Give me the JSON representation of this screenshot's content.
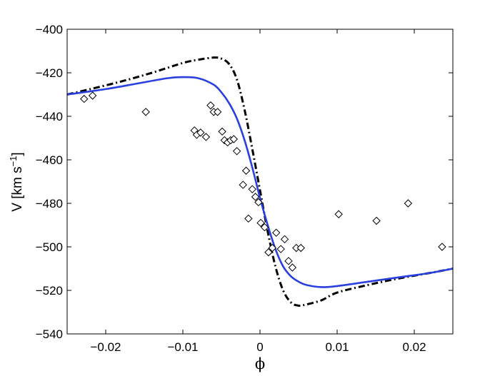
{
  "chart_data": {
    "type": "scatter",
    "title": "",
    "xlabel": "ϕ",
    "ylabel": {
      "main": "V [km s",
      "superscript": "−1",
      "close": "]"
    },
    "xlim": [
      -0.025,
      0.025
    ],
    "ylim": [
      -540,
      -400
    ],
    "x_ticks": [
      -0.02,
      -0.01,
      0,
      0.01,
      0.02
    ],
    "x_tick_labels": [
      "−0.02",
      "−0.01",
      "0",
      "0.01",
      "0.02"
    ],
    "y_ticks": [
      -540,
      -520,
      -500,
      -480,
      -460,
      -440,
      -420,
      -400
    ],
    "y_tick_labels": [
      "−540",
      "−520",
      "−500",
      "−480",
      "−460",
      "−440",
      "−420",
      "−400"
    ],
    "grid": false,
    "legend": "none",
    "series": [
      {
        "kind": "line",
        "style": "dash-dot",
        "color": "#000000",
        "x": [
          -0.025,
          -0.022,
          -0.018,
          -0.014,
          -0.01,
          -0.008,
          -0.006,
          -0.005,
          -0.004,
          -0.003,
          -0.002,
          -0.001,
          0,
          0.001,
          0.002,
          0.003,
          0.004,
          0.005,
          0.006,
          0.008,
          0.01,
          0.014,
          0.018,
          0.022,
          0.025
        ],
        "y": [
          -430,
          -427.5,
          -424,
          -420,
          -415.5,
          -414,
          -413,
          -413.5,
          -416,
          -423,
          -437,
          -455,
          -474,
          -493,
          -509,
          -520,
          -525.5,
          -527,
          -526.5,
          -524.5,
          -521,
          -517.5,
          -514.5,
          -512,
          -510
        ]
      },
      {
        "kind": "line",
        "style": "solid",
        "color": "#2a3fe0",
        "x": [
          -0.025,
          -0.02,
          -0.016,
          -0.012,
          -0.01,
          -0.008,
          -0.006,
          -0.005,
          -0.004,
          -0.003,
          -0.002,
          -0.001,
          0,
          0.001,
          0.002,
          0.003,
          0.004,
          0.005,
          0.006,
          0.008,
          0.01,
          0.014,
          0.018,
          0.022,
          0.025
        ],
        "y": [
          -430,
          -427.5,
          -425,
          -422.5,
          -422,
          -422.5,
          -425.5,
          -429,
          -434,
          -441,
          -451,
          -463.5,
          -477.5,
          -490,
          -501,
          -509,
          -513.5,
          -516,
          -517.5,
          -518.5,
          -518,
          -516,
          -514,
          -512,
          -510
        ]
      },
      {
        "kind": "markers",
        "marker": "diamond",
        "color": "#000000",
        "x": [
          -0.0228,
          -0.0217,
          -0.0148,
          -0.0085,
          -0.0082,
          -0.0077,
          -0.007,
          -0.0064,
          -0.006,
          -0.0055,
          -0.0049,
          -0.0046,
          -0.0042,
          -0.0038,
          -0.0034,
          -0.003,
          -0.0022,
          -0.0018,
          -0.0015,
          -0.001,
          -0.0006,
          -0.0002,
          0.0001,
          0.0006,
          0.0011,
          0.0016,
          0.0021,
          0.0027,
          0.0032,
          0.0037,
          0.0042,
          0.0047,
          0.0053,
          0.0102,
          0.0151,
          0.0192,
          0.0236
        ],
        "y": [
          -432,
          -430.5,
          -438,
          -446.5,
          -448.5,
          -447.5,
          -449.5,
          -435,
          -438,
          -438,
          -447,
          -451,
          -452,
          -451,
          -450.5,
          -456,
          -471.5,
          -465,
          -487,
          -473.5,
          -477,
          -479.5,
          -489,
          -491,
          -502.5,
          -500.5,
          -493.5,
          -501,
          -496.5,
          -506.5,
          -509.5,
          -500.5,
          -500.5,
          -485,
          -488,
          -480,
          -500
        ]
      }
    ]
  }
}
